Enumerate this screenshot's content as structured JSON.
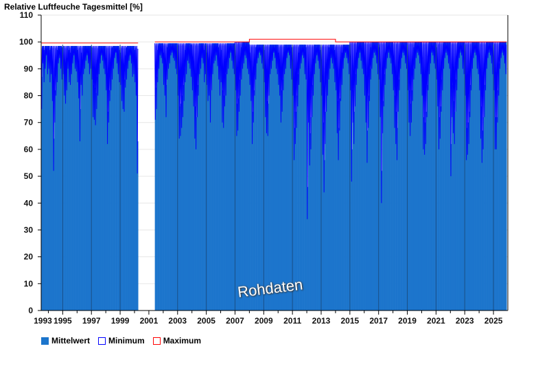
{
  "chart_data": {
    "type": "bar",
    "title": "Relative Luftfeuche Tagesmittel [%]",
    "watermark": "Rohdaten",
    "xlim": [
      1993.5,
      2026
    ],
    "ylim": [
      0,
      110
    ],
    "yticks": [
      0,
      10,
      20,
      30,
      40,
      50,
      60,
      70,
      80,
      90,
      100,
      110
    ],
    "xtick_labels": [
      "1993",
      "1995",
      "1997",
      "1999",
      "2001",
      "2003",
      "2005",
      "2007",
      "2009",
      "2011",
      "2013",
      "2015",
      "2017",
      "2019",
      "2021",
      "2023",
      "2025"
    ],
    "legend": [
      {
        "name": "Mittelwert",
        "color": "#1c75cc",
        "style": "filled"
      },
      {
        "name": "Minimum",
        "color": "#0000ff",
        "style": "outline"
      },
      {
        "name": "Maximum",
        "color": "#ff0000",
        "style": "outline"
      }
    ],
    "legend_position": "bottom-left",
    "years": [
      {
        "year": 1993,
        "mean": 98.5,
        "max": 99.6,
        "min": [
          null,
          null,
          null,
          null,
          null,
          null,
          75,
          92,
          85,
          90,
          95,
          88
        ]
      },
      {
        "year": 1994,
        "mean": 98.5,
        "max": 99.6,
        "min": [
          90,
          85,
          88,
          78,
          52,
          70,
          80,
          85,
          92,
          94,
          90,
          86
        ]
      },
      {
        "year": 1995,
        "mean": 98.5,
        "max": 99.6,
        "min": [
          88,
          80,
          77,
          82,
          90,
          85,
          84,
          88,
          92,
          95,
          90,
          89
        ]
      },
      {
        "year": 1996,
        "mean": 98.5,
        "max": 99.6,
        "min": [
          85,
          79,
          63,
          84,
          80,
          88,
          90,
          93,
          95,
          92,
          88,
          90
        ]
      },
      {
        "year": 1997,
        "mean": 98.5,
        "max": 99.6,
        "min": [
          86,
          72,
          71,
          69,
          75,
          80,
          88,
          92,
          95,
          93,
          90,
          88
        ]
      },
      {
        "year": 1998,
        "mean": 98.5,
        "max": 99.6,
        "min": [
          82,
          62,
          70,
          78,
          82,
          86,
          90,
          94,
          96,
          92,
          88,
          85
        ]
      },
      {
        "year": 1999,
        "mean": 98.5,
        "max": 99.6,
        "min": [
          84,
          78,
          75,
          74,
          83,
          86,
          90,
          93,
          95,
          92,
          87,
          88
        ]
      },
      {
        "year": 2000,
        "mean": 98.5,
        "max": 99.6,
        "min": [
          85,
          80,
          51,
          null,
          null,
          null,
          null,
          null,
          null,
          null,
          null,
          null
        ]
      },
      {
        "year": 2001,
        "mean": 99.5,
        "max": 100,
        "min": [
          null,
          null,
          null,
          null,
          null,
          71,
          75,
          85,
          90,
          95,
          94,
          92
        ]
      },
      {
        "year": 2002,
        "mean": 99.5,
        "max": 100,
        "min": [
          84,
          80,
          72,
          86,
          90,
          92,
          95,
          96,
          94,
          93,
          90,
          88
        ]
      },
      {
        "year": 2003,
        "mean": 99.5,
        "max": 100,
        "min": [
          80,
          64,
          65,
          68,
          72,
          78,
          85,
          88,
          93,
          92,
          90,
          87
        ]
      },
      {
        "year": 2004,
        "mean": 99.5,
        "max": 100,
        "min": [
          82,
          76,
          64,
          60,
          72,
          80,
          88,
          90,
          94,
          92,
          85,
          88
        ]
      },
      {
        "year": 2005,
        "mean": 99.5,
        "max": 100,
        "min": [
          84,
          78,
          80,
          70,
          82,
          88,
          92,
          93,
          95,
          91,
          86,
          80
        ]
      },
      {
        "year": 2006,
        "mean": 99.5,
        "max": 100,
        "min": [
          85,
          70,
          68,
          76,
          80,
          88,
          90,
          94,
          96,
          93,
          90,
          88
        ]
      },
      {
        "year": 2007,
        "mean": 100,
        "max": 100,
        "min": [
          82,
          65,
          67,
          74,
          80,
          86,
          90,
          92,
          95,
          94,
          90,
          88
        ]
      },
      {
        "year": 2008,
        "mean": 99,
        "max": 101,
        "min": [
          84,
          78,
          62,
          70,
          80,
          86,
          92,
          94,
          96,
          95,
          92,
          90
        ]
      },
      {
        "year": 2009,
        "mean": 99,
        "max": 101,
        "min": [
          85,
          72,
          66,
          65,
          80,
          88,
          90,
          93,
          96,
          94,
          90,
          88
        ]
      },
      {
        "year": 2010,
        "mean": 99,
        "max": 101,
        "min": [
          84,
          80,
          70,
          74,
          82,
          88,
          90,
          94,
          96,
          95,
          90,
          86
        ]
      },
      {
        "year": 2011,
        "mean": 99,
        "max": 101,
        "min": [
          80,
          56,
          62,
          68,
          76,
          84,
          90,
          92,
          95,
          94,
          88,
          86
        ]
      },
      {
        "year": 2012,
        "mean": 99,
        "max": 101,
        "min": [
          34,
          70,
          54,
          60,
          72,
          80,
          88,
          92,
          95,
          93,
          90,
          85
        ]
      },
      {
        "year": 2013,
        "mean": 99,
        "max": 101,
        "min": [
          80,
          58,
          44,
          62,
          74,
          80,
          86,
          90,
          94,
          92,
          90,
          85
        ]
      },
      {
        "year": 2014,
        "mean": 99,
        "max": 100,
        "min": [
          82,
          66,
          56,
          67,
          78,
          84,
          90,
          94,
          96,
          94,
          92,
          88
        ]
      },
      {
        "year": 2015,
        "mean": 100,
        "max": 100,
        "min": [
          82,
          48,
          70,
          62,
          76,
          84,
          90,
          94,
          96,
          93,
          90,
          88
        ]
      },
      {
        "year": 2016,
        "mean": 100,
        "max": 100,
        "min": [
          80,
          70,
          55,
          68,
          78,
          86,
          90,
          94,
          96,
          95,
          92,
          88
        ]
      },
      {
        "year": 2017,
        "mean": 100,
        "max": 100,
        "min": [
          86,
          72,
          40,
          66,
          76,
          84,
          90,
          94,
          96,
          94,
          92,
          88
        ]
      },
      {
        "year": 2018,
        "mean": 100,
        "max": 100,
        "min": [
          82,
          68,
          62,
          56,
          74,
          82,
          90,
          94,
          96,
          95,
          92,
          90
        ]
      },
      {
        "year": 2019,
        "mean": 100,
        "max": 100,
        "min": [
          82,
          70,
          65,
          70,
          78,
          86,
          90,
          94,
          96,
          95,
          92,
          88
        ]
      },
      {
        "year": 2020,
        "mean": 100,
        "max": 100,
        "min": [
          80,
          60,
          58,
          62,
          72,
          82,
          88,
          92,
          96,
          95,
          92,
          90
        ]
      },
      {
        "year": 2021,
        "mean": 100,
        "max": 100,
        "min": [
          86,
          76,
          60,
          64,
          74,
          82,
          90,
          94,
          96,
          95,
          92,
          90
        ]
      },
      {
        "year": 2022,
        "mean": 100,
        "max": 100,
        "min": [
          50,
          72,
          66,
          62,
          74,
          82,
          90,
          94,
          96,
          95,
          90,
          88
        ]
      },
      {
        "year": 2023,
        "mean": 100,
        "max": 100,
        "min": [
          80,
          56,
          58,
          62,
          72,
          82,
          90,
          94,
          96,
          95,
          90,
          88
        ]
      },
      {
        "year": 2024,
        "mean": 100,
        "max": 100,
        "min": [
          82,
          64,
          55,
          60,
          72,
          82,
          90,
          94,
          96,
          95,
          92,
          88
        ]
      },
      {
        "year": 2025,
        "mean": 100,
        "max": 100,
        "min": [
          82,
          60,
          60,
          70,
          80,
          90,
          94,
          96,
          95,
          92,
          88,
          null
        ]
      }
    ]
  }
}
